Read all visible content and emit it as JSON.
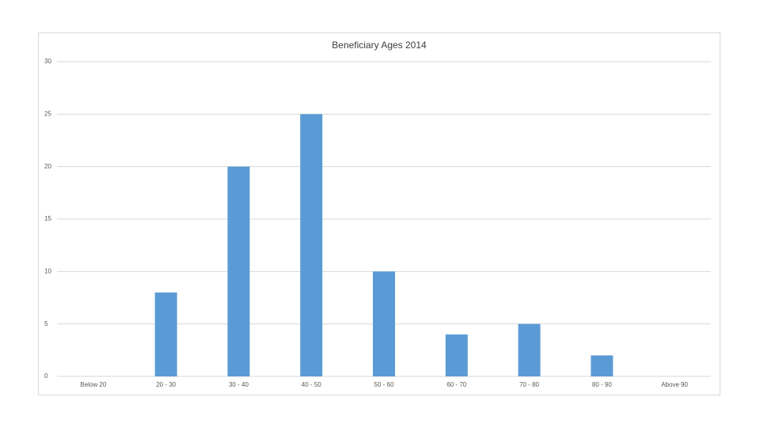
{
  "chart_data": {
    "type": "bar",
    "title": "Beneficiary Ages 2014",
    "categories": [
      "Below 20",
      "20 - 30",
      "30 - 40",
      "40 - 50",
      "50 - 60",
      "60 - 70",
      "70 - 80",
      "80 - 90",
      "Above 90"
    ],
    "values": [
      0,
      8,
      20,
      25,
      10,
      4,
      5,
      2,
      0
    ],
    "color": "#5b9bd5",
    "ylim": [
      0,
      30
    ],
    "yticks": [
      0,
      5,
      10,
      15,
      20,
      25,
      30
    ],
    "grid": true
  }
}
